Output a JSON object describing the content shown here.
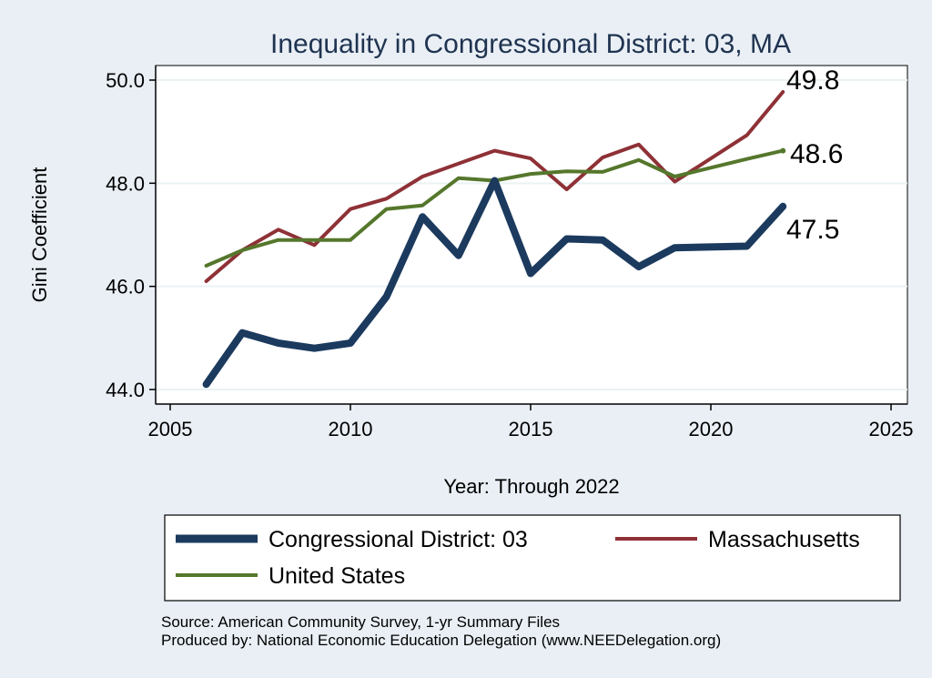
{
  "chart_data": {
    "type": "line",
    "title": "Inequality in Congressional District:  03, MA",
    "xlabel": "Year: Through 2022",
    "ylabel": "Gini Coefficient",
    "xlim": [
      2005,
      2025
    ],
    "ylim": [
      44.0,
      50.0
    ],
    "xticks": [
      2005,
      2010,
      2015,
      2020,
      2025
    ],
    "xtick_labels": [
      "2005",
      "2010",
      "2015",
      "2020",
      "2025"
    ],
    "yticks": [
      44.0,
      46.0,
      48.0,
      50.0
    ],
    "ytick_labels": [
      "44.0",
      "46.0",
      "48.0",
      "50.0"
    ],
    "grid": true,
    "legend_position": "bottom",
    "colors": {
      "district": "#1b3a5e",
      "state": "#8e3136",
      "us": "#55772c",
      "grid": "#eaf2f3",
      "plot_bg": "#ffffff",
      "page_bg": "#e9eff5",
      "title": "#1f3350"
    },
    "series": [
      {
        "key": "district",
        "name": "Congressional District:  03",
        "end_label": "47.5",
        "x": [
          2006,
          2007,
          2008,
          2009,
          2010,
          2011,
          2012,
          2013,
          2014,
          2015,
          2016,
          2017,
          2018,
          2019,
          2021,
          2022
        ],
        "values": [
          44.1,
          45.1,
          44.9,
          44.8,
          44.9,
          45.8,
          47.35,
          46.6,
          48.05,
          46.25,
          46.92,
          46.9,
          46.38,
          46.75,
          46.78,
          47.55
        ]
      },
      {
        "key": "state",
        "name": "Massachusetts",
        "end_label": "49.8",
        "x": [
          2006,
          2007,
          2008,
          2009,
          2010,
          2011,
          2012,
          2013,
          2014,
          2015,
          2016,
          2017,
          2018,
          2019,
          2021,
          2022
        ],
        "values": [
          46.1,
          46.7,
          47.1,
          46.8,
          47.5,
          47.7,
          48.13,
          48.38,
          48.63,
          48.48,
          47.88,
          48.5,
          48.75,
          48.03,
          48.93,
          49.77
        ]
      },
      {
        "key": "us",
        "name": "United States",
        "end_label": "48.6",
        "x": [
          2006,
          2007,
          2008,
          2009,
          2010,
          2011,
          2012,
          2013,
          2014,
          2015,
          2016,
          2017,
          2018,
          2019,
          2021,
          2022
        ],
        "values": [
          46.4,
          46.7,
          46.9,
          46.9,
          46.9,
          47.5,
          47.57,
          48.1,
          48.05,
          48.18,
          48.23,
          48.22,
          48.45,
          48.13,
          48.47,
          48.63
        ]
      }
    ]
  },
  "source": {
    "line1": "Source: American Community Survey, 1-yr Summary Files",
    "line2": "Produced by: National Economic Education Delegation (www.NEEDelegation.org)"
  }
}
